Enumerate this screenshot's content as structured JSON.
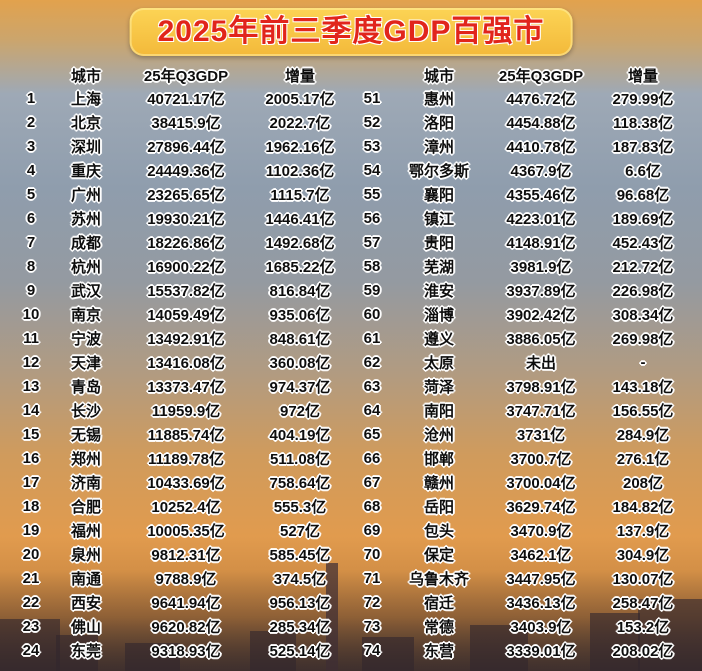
{
  "title": "2025年前三季度GDP百强市",
  "colors": {
    "banner_bg": "#f5bd3c",
    "title_red": "#e1251b",
    "text": "#0d0d0d",
    "text_outline": "#ffffff"
  },
  "chart_data": [
    {
      "type": "table",
      "name": "ranks_1_24",
      "headers": [
        "城市",
        "25年Q3GDP",
        "增量"
      ],
      "rows": [
        {
          "rank": "1",
          "city": "上海",
          "gdp": "40721.17亿",
          "delta": "2005.17亿"
        },
        {
          "rank": "2",
          "city": "北京",
          "gdp": "38415.9亿",
          "delta": "2022.7亿"
        },
        {
          "rank": "3",
          "city": "深圳",
          "gdp": "27896.44亿",
          "delta": "1962.16亿"
        },
        {
          "rank": "4",
          "city": "重庆",
          "gdp": "24449.36亿",
          "delta": "1102.36亿"
        },
        {
          "rank": "5",
          "city": "广州",
          "gdp": "23265.65亿",
          "delta": "1115.7亿"
        },
        {
          "rank": "6",
          "city": "苏州",
          "gdp": "19930.21亿",
          "delta": "1446.41亿"
        },
        {
          "rank": "7",
          "city": "成都",
          "gdp": "18226.86亿",
          "delta": "1492.68亿"
        },
        {
          "rank": "8",
          "city": "杭州",
          "gdp": "16900.22亿",
          "delta": "1685.22亿"
        },
        {
          "rank": "9",
          "city": "武汉",
          "gdp": "15537.82亿",
          "delta": "816.84亿"
        },
        {
          "rank": "10",
          "city": "南京",
          "gdp": "14059.49亿",
          "delta": "935.06亿"
        },
        {
          "rank": "11",
          "city": "宁波",
          "gdp": "13492.91亿",
          "delta": "848.61亿"
        },
        {
          "rank": "12",
          "city": "天津",
          "gdp": "13416.08亿",
          "delta": "360.08亿"
        },
        {
          "rank": "13",
          "city": "青岛",
          "gdp": "13373.47亿",
          "delta": "974.37亿"
        },
        {
          "rank": "14",
          "city": "长沙",
          "gdp": "11959.9亿",
          "delta": "972亿"
        },
        {
          "rank": "15",
          "city": "无锡",
          "gdp": "11885.74亿",
          "delta": "404.19亿"
        },
        {
          "rank": "16",
          "city": "郑州",
          "gdp": "11189.78亿",
          "delta": "511.08亿"
        },
        {
          "rank": "17",
          "city": "济南",
          "gdp": "10433.69亿",
          "delta": "758.64亿"
        },
        {
          "rank": "18",
          "city": "合肥",
          "gdp": "10252.4亿",
          "delta": "555.3亿"
        },
        {
          "rank": "19",
          "city": "福州",
          "gdp": "10005.35亿",
          "delta": "527亿"
        },
        {
          "rank": "20",
          "city": "泉州",
          "gdp": "9812.31亿",
          "delta": "585.45亿"
        },
        {
          "rank": "21",
          "city": "南通",
          "gdp": "9788.9亿",
          "delta": "374.5亿"
        },
        {
          "rank": "22",
          "city": "西安",
          "gdp": "9641.94亿",
          "delta": "956.13亿"
        },
        {
          "rank": "23",
          "city": "佛山",
          "gdp": "9620.82亿",
          "delta": "285.34亿"
        },
        {
          "rank": "24",
          "city": "东莞",
          "gdp": "9318.93亿",
          "delta": "525.14亿"
        }
      ]
    },
    {
      "type": "table",
      "name": "ranks_51_74",
      "headers": [
        "城市",
        "25年Q3GDP",
        "增量"
      ],
      "rows": [
        {
          "rank": "51",
          "city": "惠州",
          "gdp": "4476.72亿",
          "delta": "279.99亿"
        },
        {
          "rank": "52",
          "city": "洛阳",
          "gdp": "4454.88亿",
          "delta": "118.38亿"
        },
        {
          "rank": "53",
          "city": "漳州",
          "gdp": "4410.78亿",
          "delta": "187.83亿"
        },
        {
          "rank": "54",
          "city": "鄂尔多斯",
          "gdp": "4367.9亿",
          "delta": "6.6亿"
        },
        {
          "rank": "55",
          "city": "襄阳",
          "gdp": "4355.46亿",
          "delta": "96.68亿"
        },
        {
          "rank": "56",
          "city": "镇江",
          "gdp": "4223.01亿",
          "delta": "189.69亿"
        },
        {
          "rank": "57",
          "city": "贵阳",
          "gdp": "4148.91亿",
          "delta": "452.43亿"
        },
        {
          "rank": "58",
          "city": "芜湖",
          "gdp": "3981.9亿",
          "delta": "212.72亿"
        },
        {
          "rank": "59",
          "city": "淮安",
          "gdp": "3937.89亿",
          "delta": "226.98亿"
        },
        {
          "rank": "60",
          "city": "淄博",
          "gdp": "3902.42亿",
          "delta": "308.34亿"
        },
        {
          "rank": "61",
          "city": "遵义",
          "gdp": "3886.05亿",
          "delta": "269.98亿"
        },
        {
          "rank": "62",
          "city": "太原",
          "gdp": "未出",
          "delta": "-"
        },
        {
          "rank": "63",
          "city": "菏泽",
          "gdp": "3798.91亿",
          "delta": "143.18亿"
        },
        {
          "rank": "64",
          "city": "南阳",
          "gdp": "3747.71亿",
          "delta": "156.55亿"
        },
        {
          "rank": "65",
          "city": "沧州",
          "gdp": "3731亿",
          "delta": "284.9亿"
        },
        {
          "rank": "66",
          "city": "邯郸",
          "gdp": "3700.7亿",
          "delta": "276.1亿"
        },
        {
          "rank": "67",
          "city": "赣州",
          "gdp": "3700.04亿",
          "delta": "208亿"
        },
        {
          "rank": "68",
          "city": "岳阳",
          "gdp": "3629.74亿",
          "delta": "184.82亿"
        },
        {
          "rank": "69",
          "city": "包头",
          "gdp": "3470.9亿",
          "delta": "137.9亿"
        },
        {
          "rank": "70",
          "city": "保定",
          "gdp": "3462.1亿",
          "delta": "304.9亿"
        },
        {
          "rank": "71",
          "city": "乌鲁木齐",
          "gdp": "3447.95亿",
          "delta": "130.07亿"
        },
        {
          "rank": "72",
          "city": "宿迁",
          "gdp": "3436.13亿",
          "delta": "258.47亿"
        },
        {
          "rank": "73",
          "city": "常德",
          "gdp": "3403.9亿",
          "delta": "153.2亿"
        },
        {
          "rank": "74",
          "city": "东营",
          "gdp": "3339.01亿",
          "delta": "208.02亿"
        }
      ]
    }
  ]
}
